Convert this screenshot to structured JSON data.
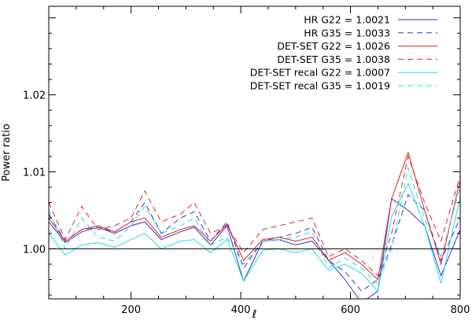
{
  "chart_data": {
    "type": "line",
    "xlabel": "ℓ",
    "ylabel": "Power ratio",
    "xlim": [
      50,
      800
    ],
    "ylim": [
      0.9935,
      1.0315
    ],
    "xticks": [
      200,
      400,
      600,
      800
    ],
    "yticks": [
      1.0,
      1.01,
      1.02
    ],
    "xtick_labels": [
      "200",
      "400",
      "600",
      "800"
    ],
    "ytick_labels": [
      "1.00",
      "1.01",
      "1.02"
    ],
    "reference_line": 1.0,
    "legend_position": "top-right",
    "x": [
      50,
      80,
      110,
      140,
      170,
      200,
      225,
      255,
      290,
      315,
      345,
      375,
      405,
      440,
      470,
      500,
      530,
      560,
      590,
      620,
      650,
      675,
      705,
      735,
      765,
      800
    ],
    "series": [
      {
        "name": "HR G22 = 1.0021",
        "color": "#3333cc",
        "dash": "solid",
        "values": [
          1.0035,
          1.0008,
          1.0022,
          1.0028,
          1.002,
          1.003,
          1.0035,
          1.0012,
          1.0022,
          1.0028,
          1.0005,
          1.003,
          0.9958,
          1.001,
          1.0012,
          1.0005,
          1.001,
          0.9985,
          0.996,
          0.993,
          0.9945,
          1.0065,
          1.005,
          1.003,
          0.9965,
          1.0025
        ]
      },
      {
        "name": "HR G35 = 1.0033",
        "color": "#3333cc",
        "dash": "dashed",
        "values": [
          1.0045,
          1.001,
          1.0025,
          1.0028,
          1.0022,
          1.0035,
          1.006,
          1.002,
          1.004,
          1.0048,
          1.001,
          1.0035,
          0.9975,
          1.001,
          1.0015,
          1.002,
          1.0028,
          0.9985,
          0.997,
          0.9945,
          0.996,
          1.0005,
          1.007,
          1.005,
          0.9985,
          1.004
        ]
      },
      {
        "name": "DET-SET G22 = 1.0026",
        "color": "#dd2222",
        "dash": "solid",
        "values": [
          1.004,
          1.001,
          1.0025,
          1.003,
          1.0022,
          1.0035,
          1.004,
          1.0015,
          1.0025,
          1.003,
          1.001,
          1.0032,
          0.9985,
          1.0012,
          1.0015,
          1.001,
          1.0015,
          0.9985,
          0.9995,
          0.998,
          0.996,
          1.0065,
          1.0125,
          1.005,
          0.998,
          1.009
        ]
      },
      {
        "name": "DET-SET G35 = 1.0038",
        "color": "#dd2222",
        "dash": "dashed",
        "values": [
          1.006,
          1.0012,
          1.0055,
          1.0025,
          1.003,
          1.004,
          1.0075,
          1.0035,
          1.0045,
          1.006,
          1.002,
          1.003,
          0.9995,
          1.0025,
          1.003,
          1.0035,
          1.004,
          0.999,
          1.0,
          0.9985,
          0.9965,
          1.002,
          1.012,
          1.006,
          1.001,
          1.0095
        ]
      },
      {
        "name": "DET-SET recal G22 = 1.0007",
        "color": "#22dddd",
        "dash": "solid",
        "values": [
          1.002,
          0.9992,
          1.0005,
          1.0008,
          1.0002,
          1.0012,
          1.002,
          1.0,
          1.001,
          1.0012,
          0.9995,
          1.0012,
          0.9958,
          0.9998,
          1.0,
          0.9995,
          1.0,
          0.9972,
          0.998,
          0.9968,
          0.9945,
          1.0042,
          1.0085,
          1.003,
          0.9955,
          1.0068
        ]
      },
      {
        "name": "DET-SET recal G35 = 1.0019",
        "color": "#22dddd",
        "dash": "dashed",
        "values": [
          1.005,
          1.0,
          1.004,
          1.0015,
          1.001,
          1.003,
          1.0055,
          1.002,
          1.003,
          1.004,
          1.0005,
          1.0015,
          0.998,
          1.001,
          1.0012,
          1.0015,
          1.0022,
          0.9975,
          0.9988,
          0.9975,
          0.9955,
          1.0,
          1.0105,
          1.004,
          0.999,
          1.008
        ]
      }
    ]
  }
}
